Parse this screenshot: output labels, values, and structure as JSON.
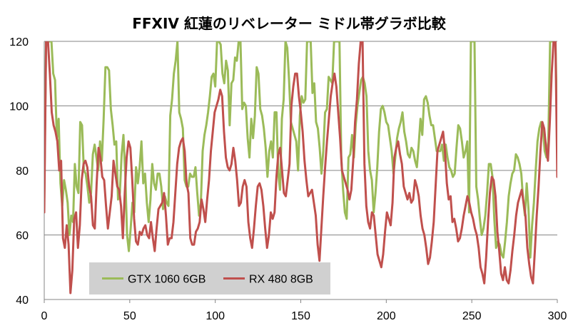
{
  "chart_data": {
    "type": "line",
    "title": "FFXIV 紅蓮のリベレーター ミドル帯グラボ比較",
    "xlabel": "",
    "ylabel": "",
    "xlim": [
      0,
      300
    ],
    "ylim": [
      40,
      120
    ],
    "x_ticks": [
      0,
      50,
      100,
      150,
      200,
      250,
      300
    ],
    "y_ticks": [
      40,
      60,
      80,
      100,
      120
    ],
    "grid": "horizontal",
    "legend_position": "bottom-left",
    "series": [
      {
        "name": "GTX 1060 6GB",
        "color": "#9bbb59",
        "values": [
          71,
          120,
          120,
          120,
          120,
          110,
          108,
          90,
          96,
          76,
          69,
          77,
          74,
          70,
          60,
          66,
          64,
          82,
          75,
          73,
          95,
          94,
          80,
          79,
          75,
          70,
          73,
          85,
          88,
          84,
          80,
          89,
          83,
          96,
          112,
          112,
          111,
          99,
          94,
          88,
          89,
          71,
          73,
          85,
          91,
          79,
          60,
          55,
          62,
          70,
          67,
          81,
          76,
          81,
          89,
          76,
          79,
          70,
          64,
          71,
          82,
          76,
          74,
          79,
          79,
          75,
          68,
          72,
          70,
          69,
          97,
          102,
          110,
          114,
          120,
          98,
          96,
          93,
          77,
          75,
          75,
          79,
          78,
          78,
          81,
          73,
          66,
          70,
          86,
          91,
          94,
          98,
          103,
          109,
          110,
          106,
          120,
          120,
          119,
          110,
          107,
          114,
          111,
          94,
          107,
          108,
          115,
          114,
          120,
          120,
          99,
          101,
          100,
          90,
          84,
          96,
          90,
          97,
          112,
          110,
          99,
          97,
          93,
          87,
          78,
          86,
          89,
          84,
          98,
          98,
          79,
          74,
          96,
          102,
          120,
          118,
          108,
          95,
          93,
          91,
          89,
          80,
          97,
          103,
          101,
          102,
          120,
          120,
          120,
          104,
          107,
          95,
          93,
          87,
          79,
          86,
          98,
          99,
          109,
          108,
          107,
          120,
          120,
          120,
          120,
          84,
          74,
          67,
          65,
          84,
          85,
          91,
          84,
          94,
          100,
          104,
          108,
          109,
          107,
          103,
          86,
          80,
          77,
          67,
          73,
          81,
          92,
          99,
          100,
          98,
          95,
          94,
          90,
          86,
          79,
          84,
          90,
          93,
          95,
          98,
          92,
          89,
          85,
          84,
          87,
          86,
          83,
          81,
          88,
          96,
          91,
          102,
          103,
          101,
          97,
          94,
          94,
          90,
          86,
          86,
          86,
          88,
          83,
          88,
          84,
          81,
          80,
          78,
          79,
          87,
          94,
          93,
          89,
          84,
          86,
          89,
          67,
          120,
          120,
          120,
          75,
          71,
          65,
          60,
          62,
          66,
          73,
          82,
          82,
          78,
          65,
          56,
          58,
          57,
          54,
          53,
          58,
          64,
          72,
          76,
          79,
          80,
          85,
          84,
          82,
          79,
          71,
          66,
          76,
          68,
          53,
          63,
          70,
          80,
          89,
          93,
          95,
          93,
          86,
          84,
          89,
          120,
          120,
          120,
          120,
          90
        ]
      },
      {
        "name": "RX 480 8GB",
        "color": "#c0504d",
        "values": [
          67,
          120,
          120,
          110,
          98,
          94,
          92,
          89,
          80,
          83,
          59,
          56,
          63,
          57,
          42,
          49,
          65,
          67,
          56,
          63,
          77,
          82,
          83,
          81,
          75,
          72,
          63,
          62,
          76,
          87,
          84,
          78,
          77,
          69,
          62,
          67,
          72,
          83,
          79,
          75,
          74,
          69,
          59,
          73,
          84,
          89,
          87,
          77,
          65,
          58,
          57,
          61,
          60,
          62,
          63,
          60,
          59,
          64,
          59,
          55,
          62,
          68,
          69,
          70,
          73,
          66,
          57,
          59,
          59,
          64,
          73,
          82,
          87,
          89,
          90,
          86,
          76,
          73,
          59,
          57,
          57,
          61,
          62,
          64,
          71,
          68,
          64,
          71,
          77,
          86,
          92,
          98,
          100,
          102,
          105,
          103,
          92,
          84,
          81,
          80,
          82,
          87,
          83,
          77,
          69,
          70,
          75,
          77,
          75,
          64,
          59,
          56,
          62,
          69,
          75,
          76,
          74,
          69,
          62,
          56,
          60,
          67,
          65,
          67,
          78,
          85,
          87,
          80,
          73,
          72,
          77,
          82,
          100,
          106,
          110,
          110,
          103,
          98,
          92,
          83,
          77,
          72,
          73,
          74,
          70,
          66,
          57,
          52,
          62,
          72,
          81,
          89,
          96,
          103,
          107,
          110,
          106,
          98,
          90,
          80,
          78,
          76,
          74,
          71,
          74,
          83,
          95,
          102,
          113,
          120,
          120,
          82,
          69,
          64,
          62,
          67,
          66,
          60,
          54,
          52,
          50,
          54,
          61,
          67,
          65,
          63,
          70,
          84,
          87,
          89,
          85,
          82,
          75,
          73,
          71,
          73,
          70,
          71,
          77,
          75,
          72,
          66,
          62,
          60,
          56,
          51,
          53,
          58,
          64,
          75,
          86,
          88,
          90,
          92,
          86,
          76,
          71,
          72,
          64,
          65,
          62,
          58,
          59,
          62,
          66,
          69,
          72,
          70,
          67,
          65,
          62,
          60,
          56,
          50,
          48,
          45,
          53,
          64,
          73,
          78,
          77,
          72,
          61,
          55,
          48,
          46,
          50,
          46,
          45,
          49,
          55,
          60,
          66,
          70,
          72,
          74,
          70,
          66,
          56,
          51,
          47,
          45,
          55,
          66,
          75,
          86,
          95,
          93,
          87,
          83,
          95,
          110,
          120,
          120,
          78
        ]
      }
    ]
  }
}
